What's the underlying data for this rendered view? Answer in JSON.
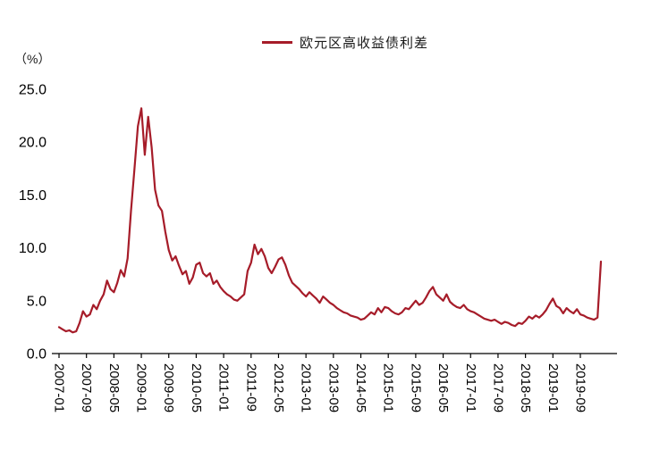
{
  "chart_data": {
    "type": "line",
    "legend_label": "欧元区高收益债利差",
    "unit_label": "（%）",
    "line_color": "#A61C29",
    "axis_color": "#000000",
    "text_color": "#000000",
    "ylim": [
      0,
      25
    ],
    "yticks": [
      0,
      5,
      10,
      15,
      20,
      25
    ],
    "ytick_labels": [
      "0.0",
      "5.0",
      "10.0",
      "15.0",
      "20.0",
      "25.0"
    ],
    "xtick_interval_months": 8,
    "xtick_labels": [
      "2007-01",
      "2007-09",
      "2008-05",
      "2009-01",
      "2009-09",
      "2010-05",
      "2011-01",
      "2011-09",
      "2012-05",
      "2013-01",
      "2013-09",
      "2014-05",
      "2015-01",
      "2015-09",
      "2016-05",
      "2017-01",
      "2017-09",
      "2018-05",
      "2019-01",
      "2019-09"
    ],
    "series": [
      {
        "name": "欧元区高收益债利差",
        "points": [
          [
            "2007-01",
            2.5
          ],
          [
            "2007-02",
            2.3
          ],
          [
            "2007-03",
            2.1
          ],
          [
            "2007-04",
            2.2
          ],
          [
            "2007-05",
            2.0
          ],
          [
            "2007-06",
            2.1
          ],
          [
            "2007-07",
            2.9
          ],
          [
            "2007-08",
            4.0
          ],
          [
            "2007-09",
            3.5
          ],
          [
            "2007-10",
            3.7
          ],
          [
            "2007-11",
            4.6
          ],
          [
            "2007-12",
            4.2
          ],
          [
            "2008-01",
            5.0
          ],
          [
            "2008-02",
            5.6
          ],
          [
            "2008-03",
            6.9
          ],
          [
            "2008-04",
            6.1
          ],
          [
            "2008-05",
            5.8
          ],
          [
            "2008-06",
            6.7
          ],
          [
            "2008-07",
            7.9
          ],
          [
            "2008-08",
            7.3
          ],
          [
            "2008-09",
            9.0
          ],
          [
            "2008-10",
            13.5
          ],
          [
            "2008-11",
            17.5
          ],
          [
            "2008-12",
            21.5
          ],
          [
            "2009-01",
            23.2
          ],
          [
            "2009-02",
            18.8
          ],
          [
            "2009-03",
            22.4
          ],
          [
            "2009-04",
            19.5
          ],
          [
            "2009-05",
            15.5
          ],
          [
            "2009-06",
            14.0
          ],
          [
            "2009-07",
            13.5
          ],
          [
            "2009-08",
            11.5
          ],
          [
            "2009-09",
            9.8
          ],
          [
            "2009-10",
            8.8
          ],
          [
            "2009-11",
            9.2
          ],
          [
            "2009-12",
            8.3
          ],
          [
            "2010-01",
            7.5
          ],
          [
            "2010-02",
            7.8
          ],
          [
            "2010-03",
            6.6
          ],
          [
            "2010-04",
            7.2
          ],
          [
            "2010-05",
            8.4
          ],
          [
            "2010-06",
            8.6
          ],
          [
            "2010-07",
            7.6
          ],
          [
            "2010-08",
            7.3
          ],
          [
            "2010-09",
            7.6
          ],
          [
            "2010-10",
            6.6
          ],
          [
            "2010-11",
            6.9
          ],
          [
            "2010-12",
            6.3
          ],
          [
            "2011-01",
            5.9
          ],
          [
            "2011-02",
            5.6
          ],
          [
            "2011-03",
            5.4
          ],
          [
            "2011-04",
            5.1
          ],
          [
            "2011-05",
            5.0
          ],
          [
            "2011-06",
            5.3
          ],
          [
            "2011-07",
            5.6
          ],
          [
            "2011-08",
            7.8
          ],
          [
            "2011-09",
            8.6
          ],
          [
            "2011-10",
            10.3
          ],
          [
            "2011-11",
            9.4
          ],
          [
            "2011-12",
            9.9
          ],
          [
            "2012-01",
            9.2
          ],
          [
            "2012-02",
            8.1
          ],
          [
            "2012-03",
            7.6
          ],
          [
            "2012-04",
            8.2
          ],
          [
            "2012-05",
            8.9
          ],
          [
            "2012-06",
            9.1
          ],
          [
            "2012-07",
            8.4
          ],
          [
            "2012-08",
            7.4
          ],
          [
            "2012-09",
            6.7
          ],
          [
            "2012-10",
            6.4
          ],
          [
            "2012-11",
            6.1
          ],
          [
            "2012-12",
            5.7
          ],
          [
            "2013-01",
            5.4
          ],
          [
            "2013-02",
            5.8
          ],
          [
            "2013-03",
            5.5
          ],
          [
            "2013-04",
            5.2
          ],
          [
            "2013-05",
            4.8
          ],
          [
            "2013-06",
            5.4
          ],
          [
            "2013-07",
            5.1
          ],
          [
            "2013-08",
            4.8
          ],
          [
            "2013-09",
            4.6
          ],
          [
            "2013-10",
            4.3
          ],
          [
            "2013-11",
            4.1
          ],
          [
            "2013-12",
            3.9
          ],
          [
            "2014-01",
            3.8
          ],
          [
            "2014-02",
            3.6
          ],
          [
            "2014-03",
            3.5
          ],
          [
            "2014-04",
            3.4
          ],
          [
            "2014-05",
            3.2
          ],
          [
            "2014-06",
            3.3
          ],
          [
            "2014-07",
            3.6
          ],
          [
            "2014-08",
            3.9
          ],
          [
            "2014-09",
            3.7
          ],
          [
            "2014-10",
            4.3
          ],
          [
            "2014-11",
            3.9
          ],
          [
            "2014-12",
            4.4
          ],
          [
            "2015-01",
            4.3
          ],
          [
            "2015-02",
            4.0
          ],
          [
            "2015-03",
            3.8
          ],
          [
            "2015-04",
            3.7
          ],
          [
            "2015-05",
            3.9
          ],
          [
            "2015-06",
            4.3
          ],
          [
            "2015-07",
            4.2
          ],
          [
            "2015-08",
            4.6
          ],
          [
            "2015-09",
            5.0
          ],
          [
            "2015-10",
            4.6
          ],
          [
            "2015-11",
            4.8
          ],
          [
            "2015-12",
            5.3
          ],
          [
            "2016-01",
            5.9
          ],
          [
            "2016-02",
            6.3
          ],
          [
            "2016-03",
            5.6
          ],
          [
            "2016-04",
            5.3
          ],
          [
            "2016-05",
            5.0
          ],
          [
            "2016-06",
            5.6
          ],
          [
            "2016-07",
            4.9
          ],
          [
            "2016-08",
            4.6
          ],
          [
            "2016-09",
            4.4
          ],
          [
            "2016-10",
            4.3
          ],
          [
            "2016-11",
            4.6
          ],
          [
            "2016-12",
            4.2
          ],
          [
            "2017-01",
            4.0
          ],
          [
            "2017-02",
            3.9
          ],
          [
            "2017-03",
            3.7
          ],
          [
            "2017-04",
            3.5
          ],
          [
            "2017-05",
            3.3
          ],
          [
            "2017-06",
            3.2
          ],
          [
            "2017-07",
            3.1
          ],
          [
            "2017-08",
            3.2
          ],
          [
            "2017-09",
            3.0
          ],
          [
            "2017-10",
            2.8
          ],
          [
            "2017-11",
            3.0
          ],
          [
            "2017-12",
            2.9
          ],
          [
            "2018-01",
            2.7
          ],
          [
            "2018-02",
            2.6
          ],
          [
            "2018-03",
            2.9
          ],
          [
            "2018-04",
            2.8
          ],
          [
            "2018-05",
            3.1
          ],
          [
            "2018-06",
            3.5
          ],
          [
            "2018-07",
            3.3
          ],
          [
            "2018-08",
            3.6
          ],
          [
            "2018-09",
            3.4
          ],
          [
            "2018-10",
            3.7
          ],
          [
            "2018-11",
            4.1
          ],
          [
            "2018-12",
            4.7
          ],
          [
            "2019-01",
            5.2
          ],
          [
            "2019-02",
            4.5
          ],
          [
            "2019-03",
            4.3
          ],
          [
            "2019-04",
            3.8
          ],
          [
            "2019-05",
            4.3
          ],
          [
            "2019-06",
            4.0
          ],
          [
            "2019-07",
            3.8
          ],
          [
            "2019-08",
            4.2
          ],
          [
            "2019-09",
            3.7
          ],
          [
            "2019-10",
            3.6
          ],
          [
            "2019-11",
            3.4
          ],
          [
            "2019-12",
            3.3
          ],
          [
            "2020-01",
            3.2
          ],
          [
            "2020-02",
            3.4
          ],
          [
            "2020-03",
            8.7
          ]
        ]
      }
    ]
  }
}
